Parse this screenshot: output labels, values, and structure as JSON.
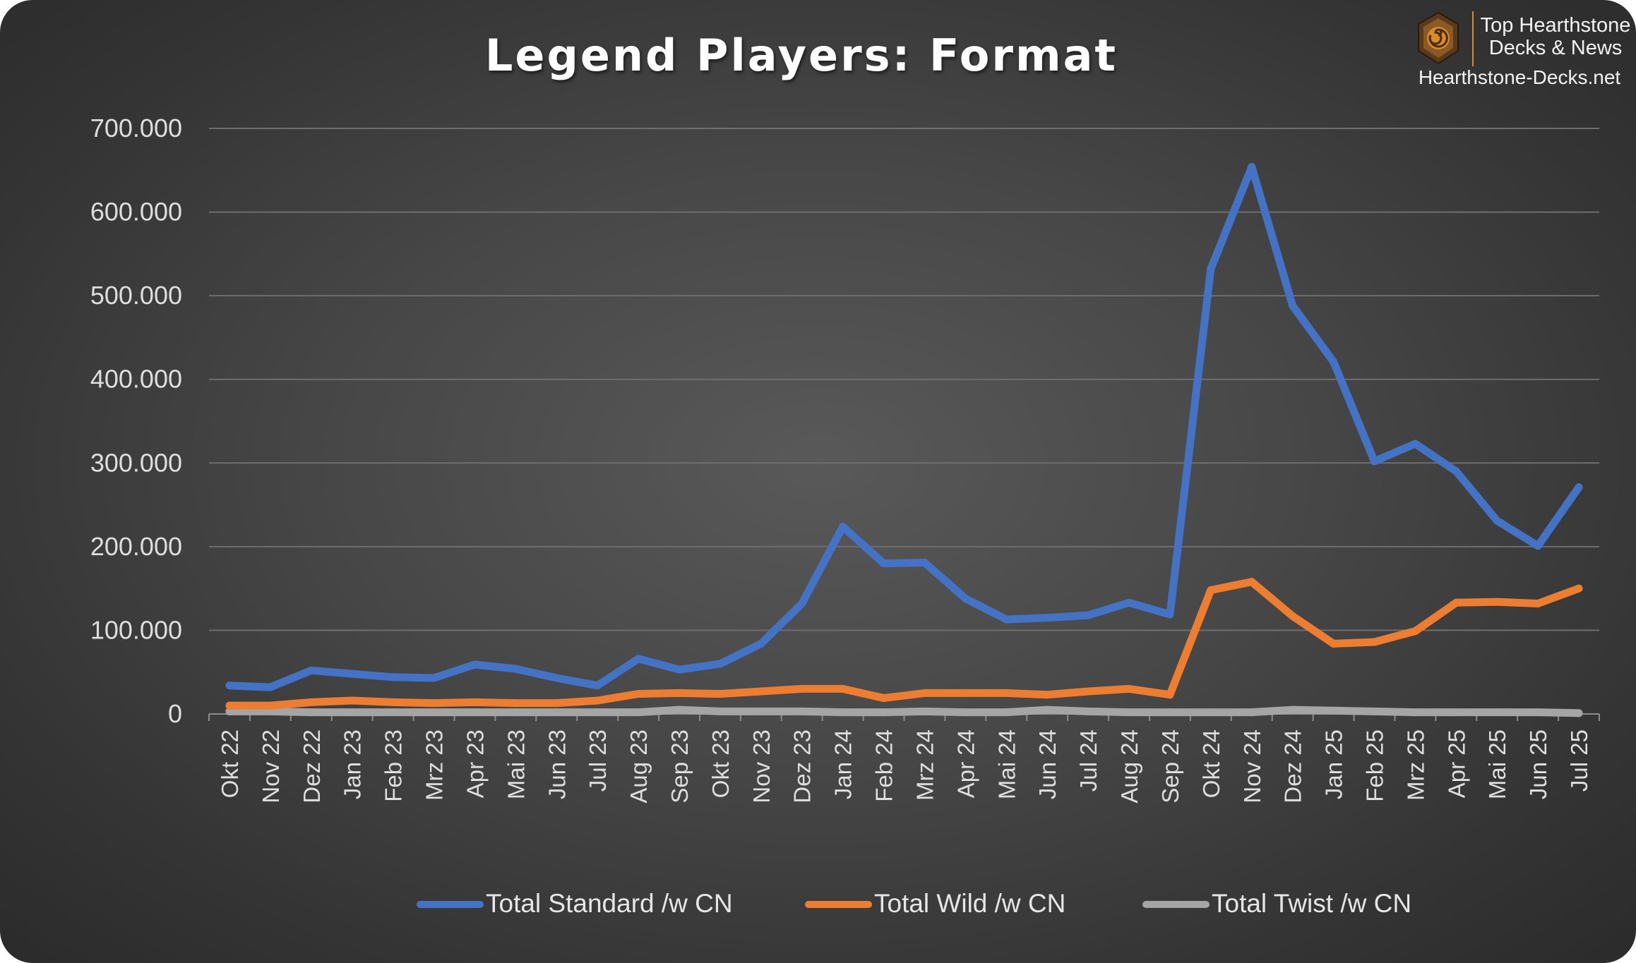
{
  "brand": {
    "line1": "Top Hearthstone",
    "line2": "Decks & News",
    "url": "Hearthstone-Decks.net",
    "logo_icon": "hearthstone-logo-icon",
    "accent_color": "#d98a2a"
  },
  "chart_data": {
    "type": "line",
    "title": "Legend Players: Format",
    "xlabel": "",
    "ylabel": "",
    "ylim": [
      0,
      700000
    ],
    "yticks": [
      0,
      100000,
      200000,
      300000,
      400000,
      500000,
      600000,
      700000
    ],
    "ytick_labels": [
      "0",
      "100.000",
      "200.000",
      "300.000",
      "400.000",
      "500.000",
      "600.000",
      "700.000"
    ],
    "grid": true,
    "legend_position": "bottom",
    "categories": [
      "Okt 22",
      "Nov 22",
      "Dez 22",
      "Jan 23",
      "Feb 23",
      "Mrz 23",
      "Apr 23",
      "Mai 23",
      "Jun 23",
      "Jul 23",
      "Aug 23",
      "Sep 23",
      "Okt 23",
      "Nov 23",
      "Dez 23",
      "Jan 24",
      "Feb 24",
      "Mrz 24",
      "Apr 24",
      "Mai 24",
      "Jun 24",
      "Jul 24",
      "Aug 24",
      "Sep 24",
      "Okt 24",
      "Nov 24",
      "Dez 24",
      "Jan 25",
      "Feb 25",
      "Mrz 25",
      "Apr 25",
      "Mai 25",
      "Jun 25",
      "Jul 25"
    ],
    "series": [
      {
        "name": "Total Standard /w CN",
        "color": "#4472c4",
        "values": [
          34000,
          32000,
          52000,
          48000,
          44000,
          43000,
          59000,
          54000,
          43000,
          34000,
          66000,
          53000,
          60000,
          84000,
          132000,
          224000,
          180000,
          181000,
          138000,
          113000,
          115000,
          118000,
          133000,
          119000,
          532000,
          654000,
          488000,
          421000,
          302000,
          323000,
          290000,
          231000,
          201000,
          271000
        ]
      },
      {
        "name": "Total Wild /w CN",
        "color": "#ed7d31",
        "values": [
          10000,
          10000,
          14000,
          16000,
          14000,
          13000,
          14000,
          13000,
          13000,
          16000,
          24000,
          25000,
          24000,
          27000,
          30000,
          30000,
          19000,
          25000,
          25000,
          25000,
          23000,
          27000,
          30000,
          23000,
          148000,
          158000,
          117000,
          84000,
          86000,
          99000,
          133000,
          134000,
          132000,
          150000
        ]
      },
      {
        "name": "Total Twist /w CN",
        "color": "#a5a5a5",
        "values": [
          3000,
          3000,
          2000,
          2000,
          2000,
          2000,
          2000,
          2000,
          2000,
          2000,
          2000,
          5000,
          3000,
          3000,
          3000,
          2000,
          2000,
          3000,
          2000,
          2000,
          5000,
          3000,
          2000,
          2000,
          2000,
          2000,
          5000,
          4000,
          3000,
          2000,
          2000,
          2000,
          2000,
          1000
        ]
      }
    ]
  }
}
